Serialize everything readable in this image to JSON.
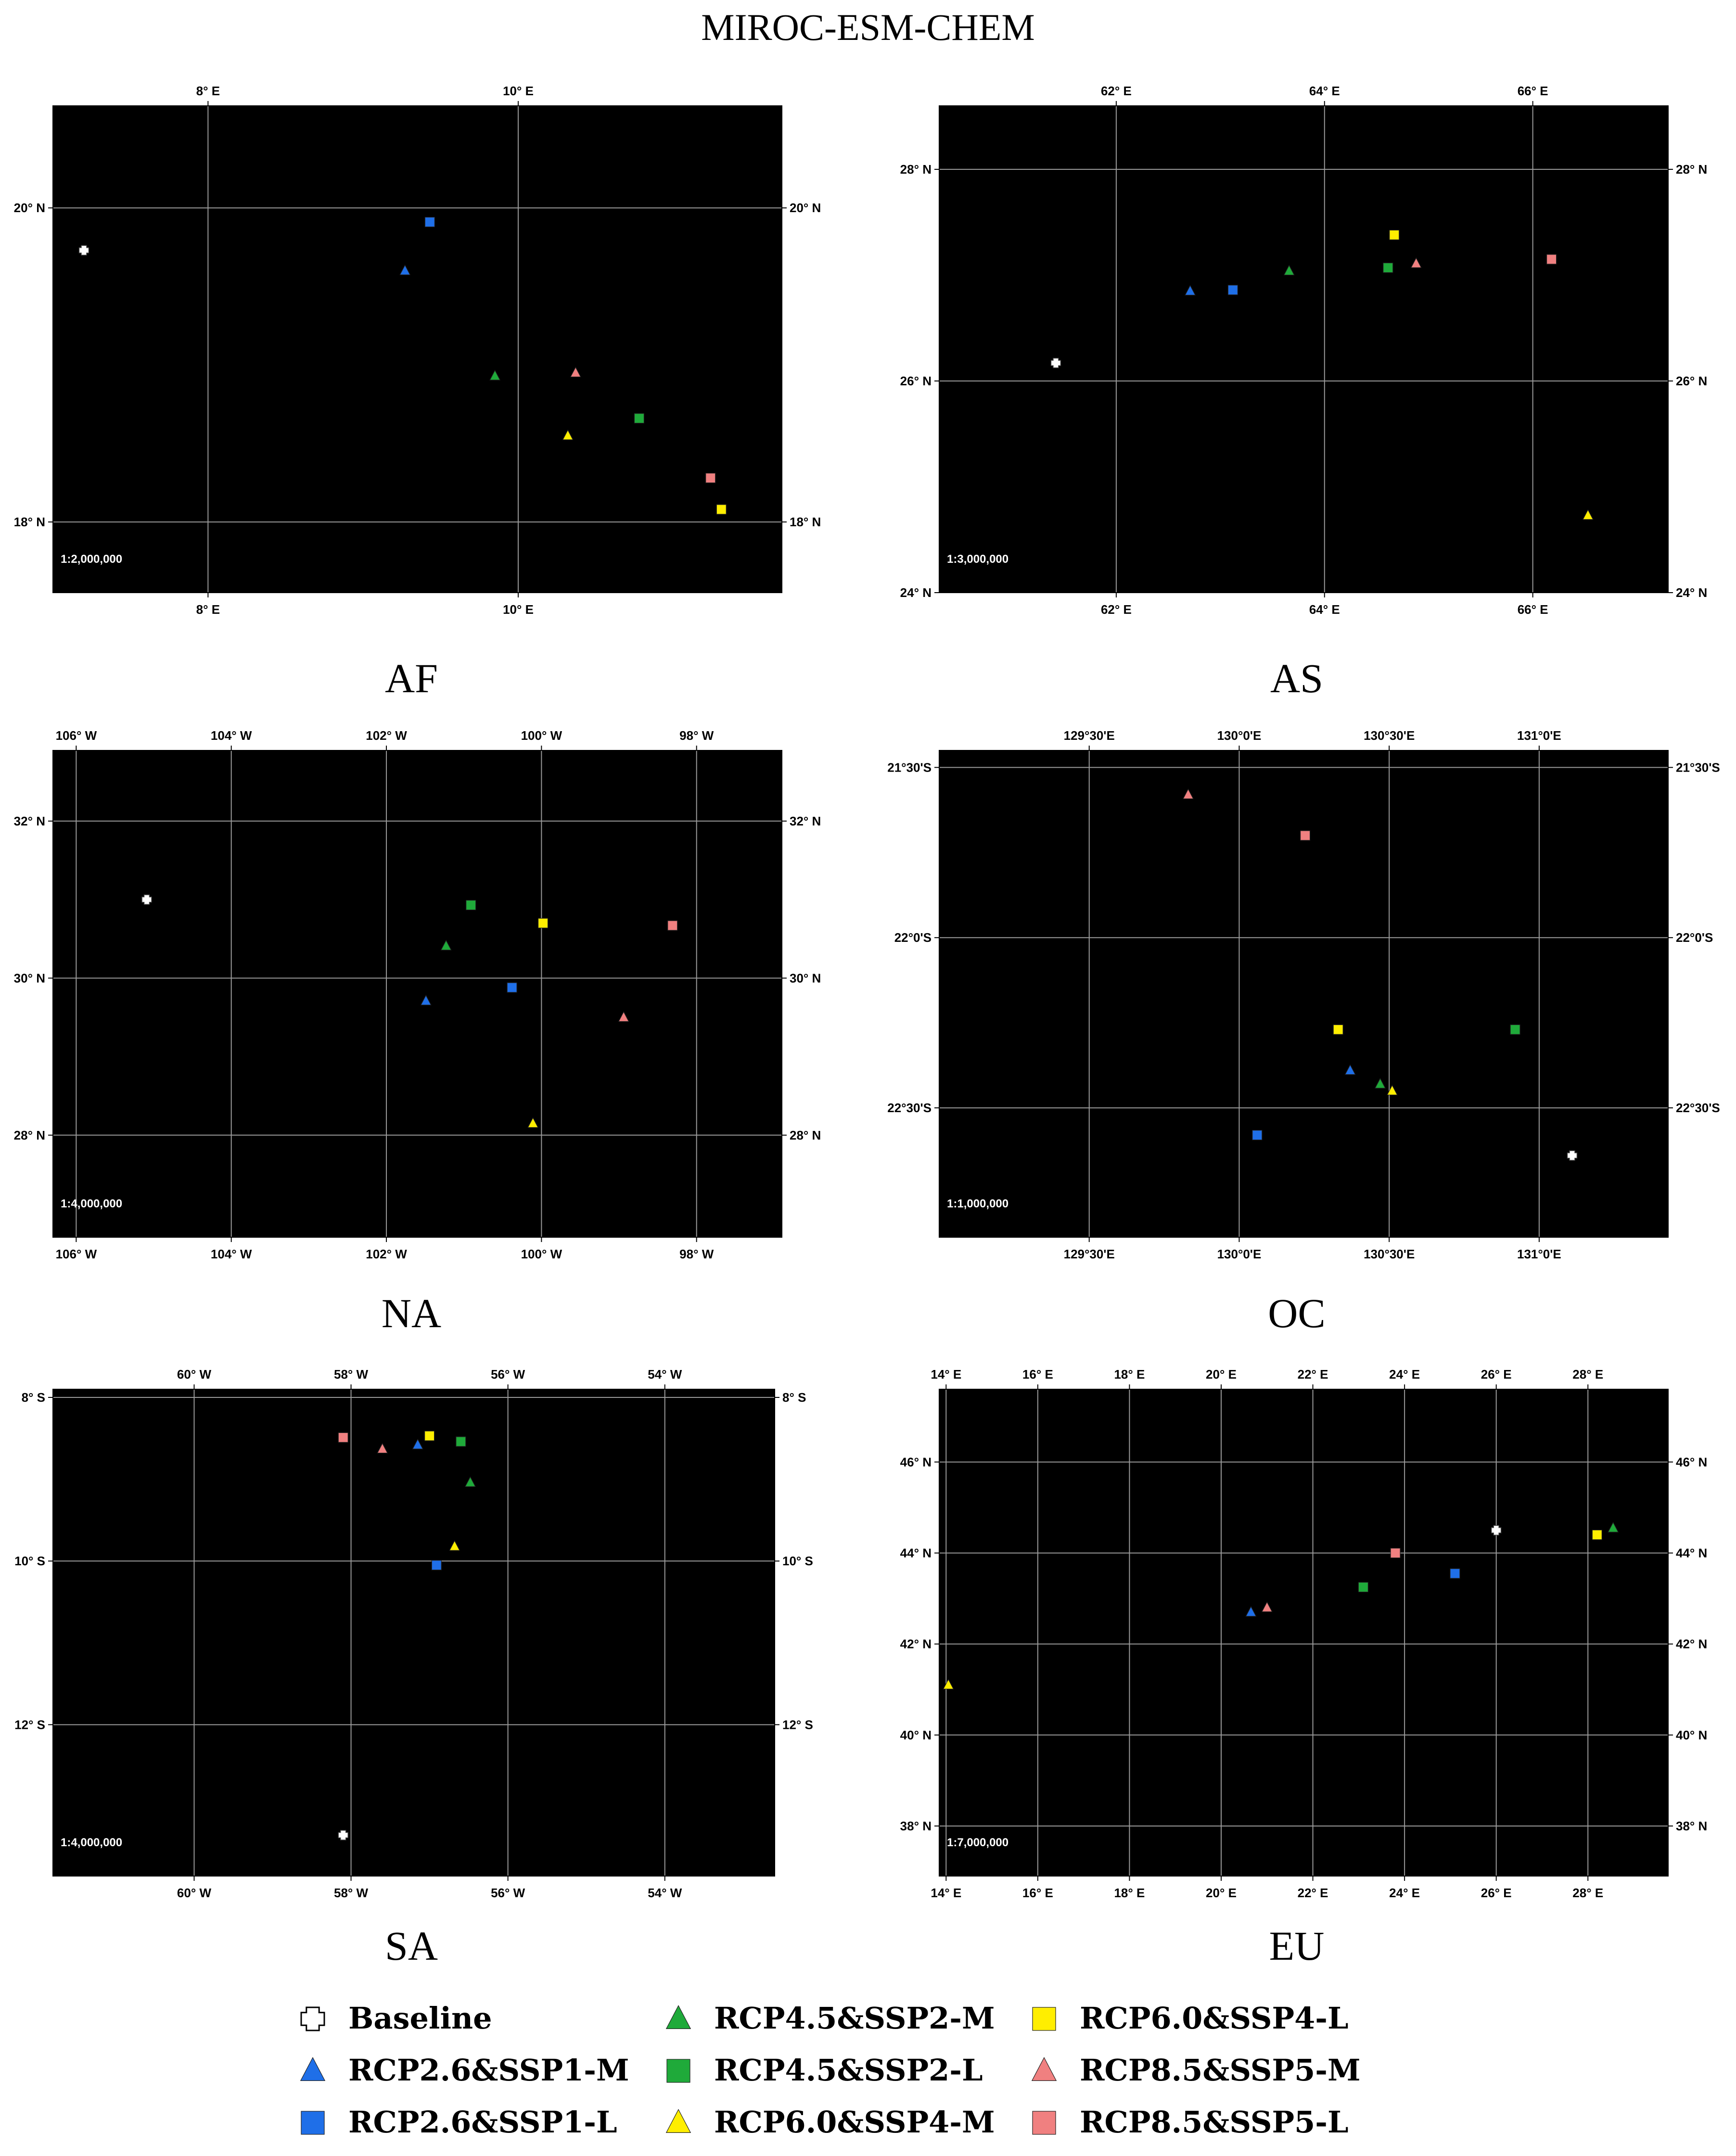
{
  "figure": {
    "title": "MIROC-ESM-CHEM"
  },
  "colors": {
    "baseline": "#ffffff",
    "rcp26": "#1f6fe8",
    "rcp45": "#1faa3a",
    "rcp60": "#ffee00",
    "rcp85": "#f08080",
    "map_background": "#000000",
    "grid": "#9a9a9a"
  },
  "legend": {
    "items": [
      {
        "label": "Baseline",
        "marker": "plus",
        "color": "#ffffff"
      },
      {
        "label": "RCP2.6&SSP1-M",
        "marker": "triangle",
        "color": "#1f6fe8"
      },
      {
        "label": "RCP2.6&SSP1-L",
        "marker": "square",
        "color": "#1f6fe8"
      },
      {
        "label": "RCP4.5&SSP2-M",
        "marker": "triangle",
        "color": "#1faa3a"
      },
      {
        "label": "RCP4.5&SSP2-L",
        "marker": "square",
        "color": "#1faa3a"
      },
      {
        "label": "RCP6.0&SSP4-M",
        "marker": "triangle",
        "color": "#ffee00"
      },
      {
        "label": "RCP6.0&SSP4-L",
        "marker": "square",
        "color": "#ffee00"
      },
      {
        "label": "RCP8.5&SSP5-M",
        "marker": "triangle",
        "color": "#f08080"
      },
      {
        "label": "RCP8.5&SSP5-L",
        "marker": "square",
        "color": "#f08080"
      }
    ]
  },
  "maps": [
    {
      "region": "AF",
      "scale": "1:2,000,000",
      "lon_range": [
        7.0,
        11.7
      ],
      "lat_range": [
        17.55,
        20.65
      ],
      "x_ticks": [
        {
          "v": 8,
          "label": "8° E"
        },
        {
          "v": 10,
          "label": "10° E"
        }
      ],
      "y_ticks": [
        {
          "v": 18,
          "label": "18° N"
        },
        {
          "v": 20,
          "label": "20° N"
        }
      ],
      "points": [
        {
          "series": "Baseline",
          "lon": 7.2,
          "lat": 19.73
        },
        {
          "series": "RCP2.6&SSP1-M",
          "lon": 9.27,
          "lat": 19.6
        },
        {
          "series": "RCP2.6&SSP1-L",
          "lon": 9.43,
          "lat": 19.91
        },
        {
          "series": "RCP4.5&SSP2-M",
          "lon": 9.85,
          "lat": 18.93
        },
        {
          "series": "RCP4.5&SSP2-L",
          "lon": 10.78,
          "lat": 18.66
        },
        {
          "series": "RCP6.0&SSP4-M",
          "lon": 10.32,
          "lat": 18.55
        },
        {
          "series": "RCP6.0&SSP4-L",
          "lon": 11.31,
          "lat": 18.08
        },
        {
          "series": "RCP8.5&SSP5-M",
          "lon": 10.37,
          "lat": 18.95
        },
        {
          "series": "RCP8.5&SSP5-L",
          "lon": 11.24,
          "lat": 18.28
        }
      ]
    },
    {
      "region": "AS",
      "scale": "1:3,000,000",
      "lon_range": [
        60.3,
        67.3
      ],
      "lat_range": [
        24.0,
        28.6
      ],
      "x_ticks": [
        {
          "v": 62,
          "label": "62° E"
        },
        {
          "v": 64,
          "label": "64° E"
        },
        {
          "v": 66,
          "label": "66° E"
        }
      ],
      "y_ticks": [
        {
          "v": 24,
          "label": "24° N"
        },
        {
          "v": 26,
          "label": "26° N"
        },
        {
          "v": 28,
          "label": "28° N"
        }
      ],
      "points": [
        {
          "series": "Baseline",
          "lon": 61.42,
          "lat": 26.17
        },
        {
          "series": "RCP2.6&SSP1-M",
          "lon": 62.71,
          "lat": 26.85
        },
        {
          "series": "RCP2.6&SSP1-L",
          "lon": 63.12,
          "lat": 26.86
        },
        {
          "series": "RCP4.5&SSP2-M",
          "lon": 63.66,
          "lat": 27.04
        },
        {
          "series": "RCP4.5&SSP2-L",
          "lon": 64.61,
          "lat": 27.07
        },
        {
          "series": "RCP6.0&SSP4-M",
          "lon": 66.53,
          "lat": 24.73
        },
        {
          "series": "RCP6.0&SSP4-L",
          "lon": 64.67,
          "lat": 27.38
        },
        {
          "series": "RCP8.5&SSP5-M",
          "lon": 64.88,
          "lat": 27.11
        },
        {
          "series": "RCP8.5&SSP5-L",
          "lon": 66.18,
          "lat": 27.15
        }
      ]
    },
    {
      "region": "NA",
      "scale": "1:4,000,000",
      "lon_range": [
        -106.3,
        -96.9
      ],
      "lat_range": [
        26.7,
        32.9
      ],
      "x_ticks": [
        {
          "v": -106,
          "label": "106° W"
        },
        {
          "v": -104,
          "label": "104° W"
        },
        {
          "v": -102,
          "label": "102° W"
        },
        {
          "v": -100,
          "label": "100° W"
        },
        {
          "v": -98,
          "label": "98° W"
        }
      ],
      "y_ticks": [
        {
          "v": 28,
          "label": "28° N"
        },
        {
          "v": 30,
          "label": "30° N"
        },
        {
          "v": 32,
          "label": "32° N"
        }
      ],
      "points": [
        {
          "series": "Baseline",
          "lon": -105.09,
          "lat": 31.0
        },
        {
          "series": "RCP2.6&SSP1-M",
          "lon": -101.49,
          "lat": 29.71
        },
        {
          "series": "RCP2.6&SSP1-L",
          "lon": -100.38,
          "lat": 29.88
        },
        {
          "series": "RCP4.5&SSP2-M",
          "lon": -101.23,
          "lat": 30.41
        },
        {
          "series": "RCP4.5&SSP2-L",
          "lon": -100.91,
          "lat": 30.93
        },
        {
          "series": "RCP6.0&SSP4-M",
          "lon": -100.11,
          "lat": 28.15
        },
        {
          "series": "RCP6.0&SSP4-L",
          "lon": -99.98,
          "lat": 30.7
        },
        {
          "series": "RCP8.5&SSP5-M",
          "lon": -98.94,
          "lat": 29.5
        },
        {
          "series": "RCP8.5&SSP5-L",
          "lon": -98.31,
          "lat": 30.67
        }
      ]
    },
    {
      "region": "OC",
      "scale": "1:1,000,000",
      "lon_range": [
        129.0,
        131.43
      ],
      "lat_range": [
        -22.88,
        -21.45
      ],
      "x_ticks": [
        {
          "v": 129.5,
          "label": "129°30'E"
        },
        {
          "v": 130.0,
          "label": "130°0'E"
        },
        {
          "v": 130.5,
          "label": "130°30'E"
        },
        {
          "v": 131.0,
          "label": "131°0'E"
        }
      ],
      "y_ticks": [
        {
          "v": -21.5,
          "label": "21°30'S"
        },
        {
          "v": -22.0,
          "label": "22°0'S"
        },
        {
          "v": -22.5,
          "label": "22°30'S"
        }
      ],
      "points": [
        {
          "series": "Baseline",
          "lon": 131.11,
          "lat": -22.64
        },
        {
          "series": "RCP2.6&SSP1-M",
          "lon": 130.37,
          "lat": -22.39
        },
        {
          "series": "RCP2.6&SSP1-L",
          "lon": 130.06,
          "lat": -22.58
        },
        {
          "series": "RCP4.5&SSP2-M",
          "lon": 130.47,
          "lat": -22.43
        },
        {
          "series": "RCP4.5&SSP2-L",
          "lon": 130.92,
          "lat": -22.27
        },
        {
          "series": "RCP6.0&SSP4-M",
          "lon": 130.51,
          "lat": -22.45
        },
        {
          "series": "RCP6.0&SSP4-L",
          "lon": 130.33,
          "lat": -22.27
        },
        {
          "series": "RCP8.5&SSP5-M",
          "lon": 129.83,
          "lat": -21.58
        },
        {
          "series": "RCP8.5&SSP5-L",
          "lon": 130.22,
          "lat": -21.7
        }
      ]
    },
    {
      "region": "SA",
      "scale": "1:4,000,000",
      "lon_range": [
        -61.8,
        -52.6
      ],
      "lat_range": [
        -13.85,
        -7.9
      ],
      "x_ticks": [
        {
          "v": -60,
          "label": "60° W"
        },
        {
          "v": -58,
          "label": "58° W"
        },
        {
          "v": -56,
          "label": "56° W"
        },
        {
          "v": -54,
          "label": "54° W"
        }
      ],
      "y_ticks": [
        {
          "v": -8,
          "label": "8° S"
        },
        {
          "v": -10,
          "label": "10° S"
        },
        {
          "v": -12,
          "label": "12° S"
        }
      ],
      "points": [
        {
          "series": "Baseline",
          "lon": -58.1,
          "lat": -13.35
        },
        {
          "series": "RCP2.6&SSP1-M",
          "lon": -57.15,
          "lat": -8.58
        },
        {
          "series": "RCP2.6&SSP1-L",
          "lon": -56.91,
          "lat": -10.05
        },
        {
          "series": "RCP4.5&SSP2-M",
          "lon": -56.48,
          "lat": -9.04
        },
        {
          "series": "RCP4.5&SSP2-L",
          "lon": -56.6,
          "lat": -8.54
        },
        {
          "series": "RCP6.0&SSP4-M",
          "lon": -56.68,
          "lat": -9.82
        },
        {
          "series": "RCP6.0&SSP4-L",
          "lon": -57.0,
          "lat": -8.47
        },
        {
          "series": "RCP8.5&SSP5-M",
          "lon": -57.6,
          "lat": -8.63
        },
        {
          "series": "RCP8.5&SSP5-L",
          "lon": -58.1,
          "lat": -8.49
        }
      ]
    },
    {
      "region": "EU",
      "scale": "1:7,000,000",
      "lon_range": [
        13.85,
        29.75
      ],
      "lat_range": [
        36.9,
        47.6
      ],
      "x_ticks": [
        {
          "v": 14,
          "label": "14° E"
        },
        {
          "v": 16,
          "label": "16° E"
        },
        {
          "v": 18,
          "label": "18° E"
        },
        {
          "v": 20,
          "label": "20° E"
        },
        {
          "v": 22,
          "label": "22° E"
        },
        {
          "v": 24,
          "label": "24° E"
        },
        {
          "v": 26,
          "label": "26° E"
        },
        {
          "v": 28,
          "label": "28° E"
        }
      ],
      "y_ticks": [
        {
          "v": 38,
          "label": "38° N"
        },
        {
          "v": 40,
          "label": "40° N"
        },
        {
          "v": 42,
          "label": "42° N"
        },
        {
          "v": 44,
          "label": "44° N"
        },
        {
          "v": 46,
          "label": "46° N"
        }
      ],
      "points": [
        {
          "series": "Baseline",
          "lon": 26.0,
          "lat": 44.5
        },
        {
          "series": "RCP2.6&SSP1-M",
          "lon": 20.65,
          "lat": 42.7
        },
        {
          "series": "RCP2.6&SSP1-L",
          "lon": 25.1,
          "lat": 43.55
        },
        {
          "series": "RCP4.5&SSP2-M",
          "lon": 28.55,
          "lat": 44.55
        },
        {
          "series": "RCP4.5&SSP2-L",
          "lon": 23.1,
          "lat": 43.25
        },
        {
          "series": "RCP6.0&SSP4-M",
          "lon": 14.05,
          "lat": 41.1
        },
        {
          "series": "RCP6.0&SSP4-L",
          "lon": 28.2,
          "lat": 44.4
        },
        {
          "series": "RCP8.5&SSP5-M",
          "lon": 21.0,
          "lat": 42.8
        },
        {
          "series": "RCP8.5&SSP5-L",
          "lon": 23.8,
          "lat": 44.0
        }
      ]
    }
  ]
}
